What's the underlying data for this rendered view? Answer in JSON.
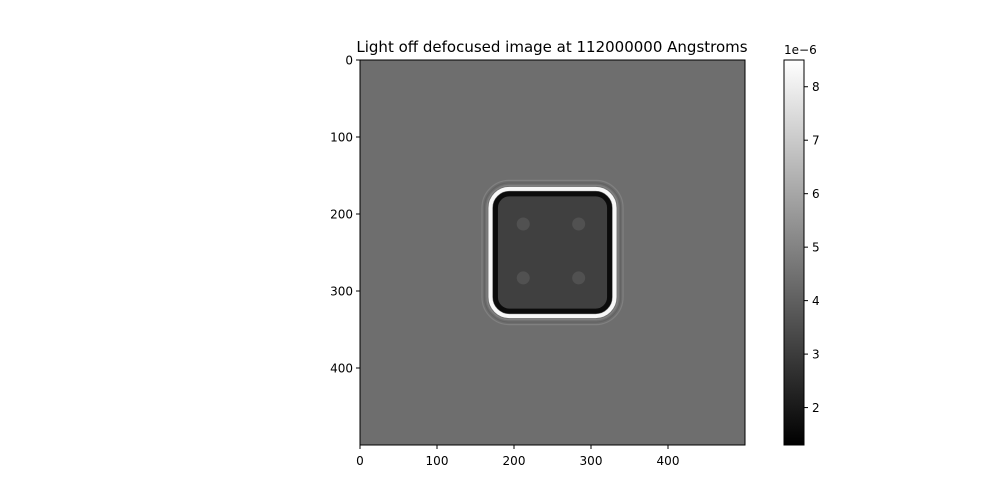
{
  "chart_data": {
    "type": "heatmap",
    "title": "Light off defocused image at 112000000 Angstroms",
    "xlabel": "",
    "ylabel": "",
    "xlim": [
      0,
      500
    ],
    "ylim": [
      500,
      0
    ],
    "x_ticks": [
      0,
      100,
      200,
      300,
      400
    ],
    "y_ticks": [
      0,
      100,
      200,
      300,
      400
    ],
    "colormap": "gray",
    "colorbar": {
      "range": [
        1.3,
        8.5
      ],
      "ticks": [
        2,
        3,
        4,
        5,
        6,
        7,
        8
      ],
      "exponent_label": "1e−6"
    },
    "image": {
      "background_value": 4.4,
      "square": {
        "x0": 172,
        "x1": 328,
        "y0": 170,
        "y1": 330,
        "corner_radius": 22
      },
      "inner_value": 3.1,
      "dark_edge_value": 1.6,
      "bright_rim_value": 8.3,
      "spots": [
        {
          "x": 212,
          "y": 213,
          "value": 3.6
        },
        {
          "x": 284,
          "y": 213,
          "value": 3.6
        },
        {
          "x": 212,
          "y": 283,
          "value": 3.6
        },
        {
          "x": 284,
          "y": 283,
          "value": 3.6
        }
      ]
    }
  }
}
